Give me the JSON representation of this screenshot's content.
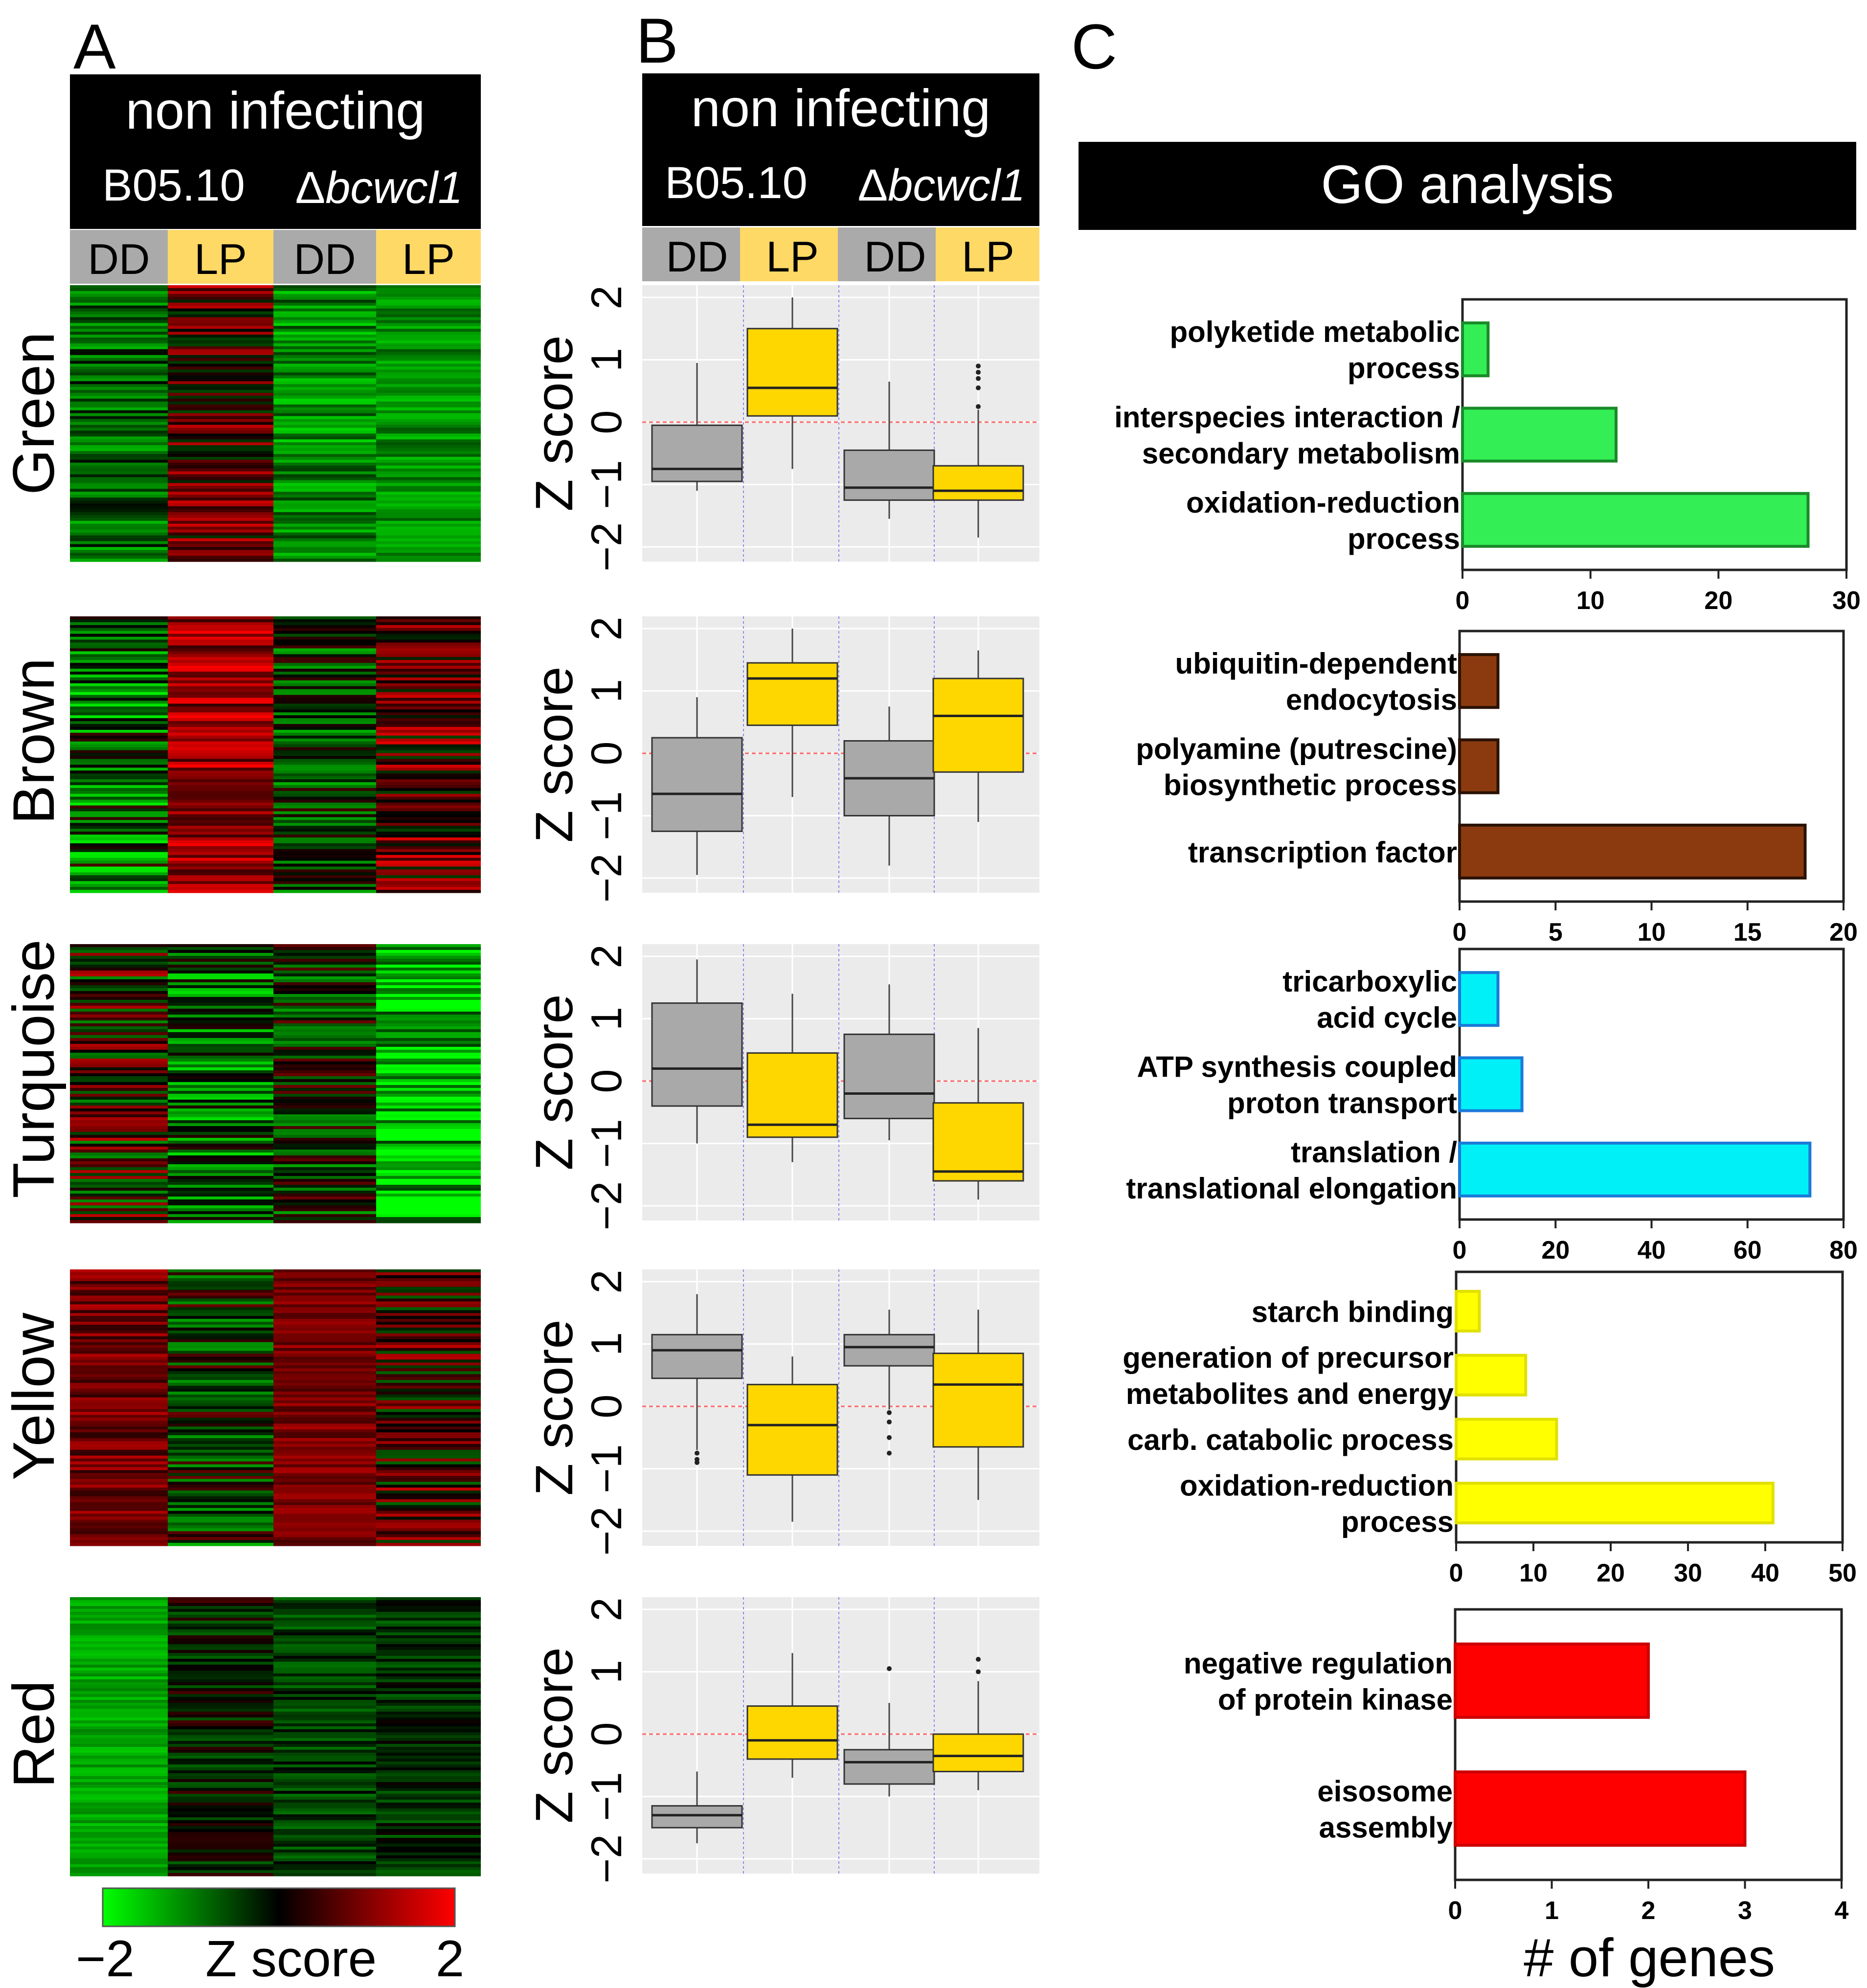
{
  "panels": {
    "A": "A",
    "B": "B",
    "C": "C"
  },
  "header": {
    "title": "non infecting",
    "strain_wt": "B05.10",
    "strain_mut_symbol": "Δ",
    "strain_mut_name": "bcwcl1"
  },
  "conditions": [
    "DD",
    "LP",
    "DD",
    "LP"
  ],
  "colorbar": {
    "min_label": "−2",
    "label": "Z score",
    "max_label": "2",
    "colors": {
      "low": "#00ff00",
      "mid": "#000000",
      "high": "#ff0000"
    }
  },
  "go_title": "GO analysis",
  "chart_data": [
    {
      "type": "heatmap",
      "columns": [
        "B05.10 DD",
        "B05.10 LP",
        "Δbcwcl1 DD",
        "Δbcwcl1 LP"
      ],
      "modules": [
        "Green",
        "Brown",
        "Turquoise",
        "Yellow",
        "Red"
      ],
      "colorbar_range": [
        -2,
        2
      ]
    },
    {
      "type": "box",
      "ylabel": "Z score",
      "ylim": [
        -2,
        2
      ],
      "yticks": [
        2,
        1,
        0,
        -1,
        -2
      ],
      "ytick_labels": [
        "2",
        "1",
        "0",
        "−1",
        "−2"
      ],
      "categories": [
        "B05.10 DD",
        "B05.10 LP",
        "Δbcwcl1 DD",
        "Δbcwcl1 LP"
      ],
      "colors": [
        "#a9a9a9",
        "#ffd700",
        "#a9a9a9",
        "#ffd700"
      ],
      "series": [
        {
          "name": "Green",
          "boxes": [
            {
              "min": -1.1,
              "q1": -0.95,
              "median": -0.75,
              "q3": -0.05,
              "max": 0.95
            },
            {
              "min": -0.75,
              "q1": 0.1,
              "median": 0.55,
              "q3": 1.5,
              "max": 2.0
            },
            {
              "min": -1.55,
              "q1": -1.25,
              "median": -1.05,
              "q3": -0.45,
              "max": 0.65
            },
            {
              "min": -1.85,
              "q1": -1.25,
              "median": -1.1,
              "q3": -0.7,
              "max": 0.2,
              "outliers": [
                0.25,
                0.55,
                0.7,
                0.8,
                0.9
              ]
            }
          ]
        },
        {
          "name": "Brown",
          "boxes": [
            {
              "min": -1.95,
              "q1": -1.25,
              "median": -0.65,
              "q3": 0.25,
              "max": 0.9
            },
            {
              "min": -0.7,
              "q1": 0.45,
              "median": 1.2,
              "q3": 1.45,
              "max": 2.0
            },
            {
              "min": -1.8,
              "q1": -1.0,
              "median": -0.4,
              "q3": 0.2,
              "max": 0.75
            },
            {
              "min": -1.1,
              "q1": -0.3,
              "median": 0.6,
              "q3": 1.2,
              "max": 1.65
            }
          ]
        },
        {
          "name": "Turquoise",
          "boxes": [
            {
              "min": -1.0,
              "q1": -0.4,
              "median": 0.2,
              "q3": 1.25,
              "max": 1.95
            },
            {
              "min": -1.3,
              "q1": -0.9,
              "median": -0.7,
              "q3": 0.45,
              "max": 1.4
            },
            {
              "min": -0.95,
              "q1": -0.6,
              "median": -0.2,
              "q3": 0.75,
              "max": 1.55
            },
            {
              "min": -1.9,
              "q1": -1.6,
              "median": -1.45,
              "q3": -0.35,
              "max": 0.85
            }
          ]
        },
        {
          "name": "Yellow",
          "boxes": [
            {
              "min": -0.7,
              "q1": 0.45,
              "median": 0.9,
              "q3": 1.15,
              "max": 1.8,
              "outliers": [
                -0.75,
                -0.85,
                -0.9
              ]
            },
            {
              "min": -1.85,
              "q1": -1.1,
              "median": -0.3,
              "q3": 0.35,
              "max": 0.8
            },
            {
              "min": -0.05,
              "q1": 0.65,
              "median": 0.95,
              "q3": 1.15,
              "max": 1.55,
              "outliers": [
                -0.1,
                -0.25,
                -0.5,
                -0.75
              ]
            },
            {
              "min": -1.5,
              "q1": -0.65,
              "median": 0.35,
              "q3": 0.85,
              "max": 1.55
            }
          ]
        },
        {
          "name": "Red",
          "boxes": [
            {
              "min": -1.75,
              "q1": -1.5,
              "median": -1.3,
              "q3": -1.15,
              "max": -0.6
            },
            {
              "min": -0.7,
              "q1": -0.4,
              "median": -0.1,
              "q3": 0.45,
              "max": 1.3
            },
            {
              "min": -1.0,
              "q1": -0.8,
              "median": -0.45,
              "q3": -0.25,
              "max": 0.5,
              "outliers": [
                1.05
              ]
            },
            {
              "min": -0.9,
              "q1": -0.6,
              "median": -0.35,
              "q3": 0.0,
              "max": 0.85,
              "outliers": [
                1.0,
                1.2
              ]
            }
          ]
        }
      ]
    },
    {
      "type": "bar",
      "orientation": "horizontal",
      "xlabel": "# of genes",
      "subcharts": [
        {
          "module": "Green",
          "color": "#33ee55",
          "edge": "#1a8a2a",
          "xlim": [
            0,
            30
          ],
          "xticks": [
            0,
            10,
            20,
            30
          ],
          "categories": [
            [
              "polyketide metabolic",
              "process"
            ],
            [
              "interspecies interaction /",
              "secondary metabolism"
            ],
            [
              "oxidation-reduction",
              "process"
            ]
          ],
          "values": [
            2,
            12,
            27
          ]
        },
        {
          "module": "Brown",
          "color": "#8b3a0f",
          "edge": "#2a1205",
          "xlim": [
            0,
            20
          ],
          "xticks": [
            0,
            5,
            10,
            15,
            20
          ],
          "categories": [
            [
              "ubiquitin-dependent",
              "endocytosis"
            ],
            [
              "polyamine (putrescine)",
              "biosynthetic process"
            ],
            [
              "transcription factor"
            ]
          ],
          "values": [
            2,
            2,
            18
          ]
        },
        {
          "module": "Turquoise",
          "color": "#00f0f8",
          "edge": "#1a7ad8",
          "xlim": [
            0,
            80
          ],
          "xticks": [
            0,
            20,
            40,
            60,
            80
          ],
          "categories": [
            [
              "tricarboxylic",
              "acid cycle"
            ],
            [
              "ATP synthesis coupled",
              "proton transport"
            ],
            [
              "translation /",
              "translational elongation"
            ]
          ],
          "values": [
            8,
            13,
            73
          ]
        },
        {
          "module": "Yellow",
          "color": "#ffff00",
          "edge": "#e0e000",
          "xlim": [
            0,
            50
          ],
          "xticks": [
            0,
            10,
            20,
            30,
            40,
            50
          ],
          "categories": [
            [
              "starch binding"
            ],
            [
              "generation of precursor",
              "metabolites and energy"
            ],
            [
              "carb. catabolic process"
            ],
            [
              "oxidation-reduction",
              "process"
            ]
          ],
          "values": [
            3,
            9,
            13,
            41
          ]
        },
        {
          "module": "Red",
          "color": "#ff0000",
          "edge": "#cc0000",
          "xlim": [
            0,
            4
          ],
          "xticks": [
            0,
            1,
            2,
            3,
            4
          ],
          "categories": [
            [
              "negative regulation",
              "of protein kinase"
            ],
            [
              "eisosome",
              "assembly"
            ]
          ],
          "values": [
            2,
            3
          ]
        }
      ]
    }
  ]
}
